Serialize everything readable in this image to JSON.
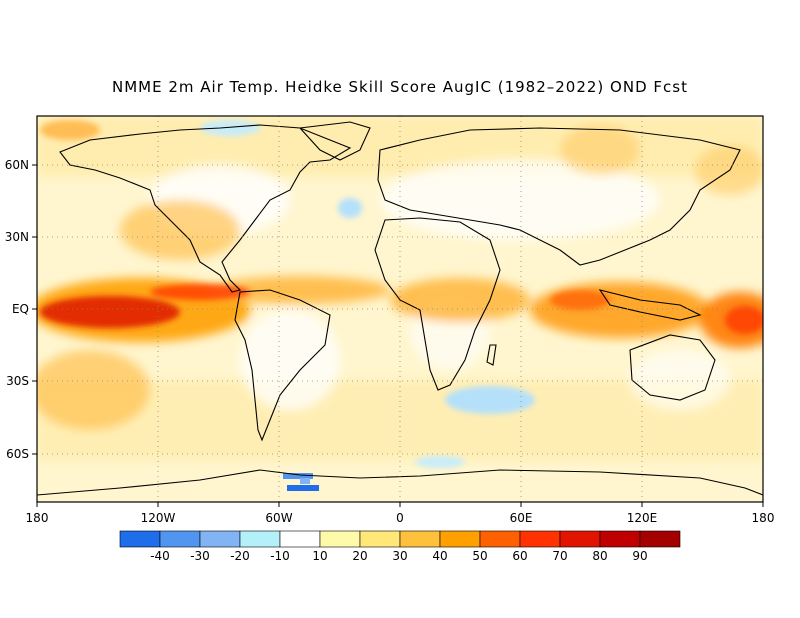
{
  "title": "NMME 2m Air Temp. Heidke Skill Score AugIC (1982–2022) OND Fcst",
  "map": {
    "projection": "cylindrical-equidistant",
    "lon_ticks": [
      "180",
      "120W",
      "60W",
      "0",
      "60E",
      "120E",
      "180"
    ],
    "lat_ticks": [
      "60N",
      "30N",
      "EQ",
      "30S",
      "60S"
    ],
    "gridlines": "dotted"
  },
  "colorbar": {
    "labels": [
      "-40",
      "-30",
      "-20",
      "-10",
      "10",
      "20",
      "30",
      "40",
      "50",
      "60",
      "70",
      "80",
      "90"
    ],
    "colors": [
      "#1e6eeb",
      "#5096f0",
      "#82b4f5",
      "#b4f0fa",
      "#ffffff",
      "#fffaaa",
      "#ffe878",
      "#ffc03c",
      "#ffa000",
      "#ff6000",
      "#ff3200",
      "#e11400",
      "#c00000",
      "#a50000"
    ]
  },
  "chart_data": {
    "type": "heatmap",
    "title": "NMME 2m Air Temp. Heidke Skill Score AugIC (1982–2022) OND Fcst",
    "x_ticks": [
      "180",
      "120W",
      "60W",
      "0",
      "60E",
      "120E",
      "180"
    ],
    "y_ticks": [
      "60N",
      "30N",
      "EQ",
      "30S",
      "60S"
    ],
    "xlim": [
      -180,
      180
    ],
    "ylim": [
      -80,
      80
    ],
    "color_levels": [
      -40,
      -30,
      -20,
      -10,
      10,
      20,
      30,
      40,
      50,
      60,
      70,
      80,
      90
    ]
  }
}
